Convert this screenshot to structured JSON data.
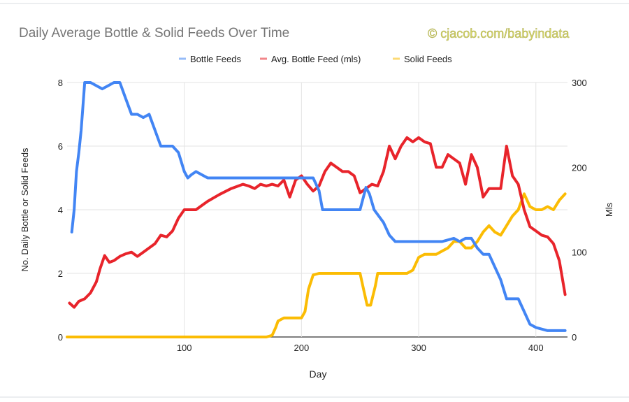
{
  "watermark": "© cjacob.com/babyindata",
  "chart_data": {
    "type": "line",
    "title": "Daily Average Bottle & Solid Feeds Over Time",
    "xlabel": "Day",
    "ylabel_left": "No. Daily Bottle or Solid Feeds",
    "ylabel_right": "Mls",
    "xlim": [
      0,
      427
    ],
    "ylim_left": [
      0,
      8
    ],
    "ylim_right": [
      0,
      300
    ],
    "x_ticks": [
      100,
      200,
      300,
      400
    ],
    "y_ticks_left": [
      0,
      2,
      4,
      6,
      8
    ],
    "y_ticks_right": [
      0,
      100,
      200,
      300
    ],
    "grid": true,
    "legend_position": "top",
    "series": [
      {
        "name": "Bottle Feeds",
        "axis": "left",
        "color": "#4285f4",
        "x": [
          4,
          6,
          8,
          10,
          12,
          15,
          18,
          20,
          30,
          35,
          40,
          45,
          50,
          55,
          60,
          65,
          70,
          75,
          80,
          85,
          90,
          95,
          100,
          103,
          106,
          110,
          115,
          120,
          150,
          180,
          200,
          210,
          215,
          218,
          225,
          250,
          255,
          258,
          262,
          270,
          275,
          280,
          300,
          320,
          330,
          335,
          340,
          345,
          350,
          355,
          360,
          370,
          375,
          380,
          385,
          390,
          395,
          400,
          410,
          420,
          425
        ],
        "y": [
          3.3,
          4.0,
          5.2,
          5.8,
          6.5,
          8.0,
          8.0,
          8.0,
          7.8,
          7.9,
          8.0,
          8.0,
          7.5,
          7.0,
          7.0,
          6.9,
          7.0,
          6.5,
          6.0,
          6.0,
          6.0,
          5.8,
          5.2,
          5.0,
          5.1,
          5.2,
          5.1,
          5.0,
          5.0,
          5.0,
          5.0,
          5.0,
          4.6,
          4.0,
          4.0,
          4.0,
          4.7,
          4.5,
          4.0,
          3.6,
          3.2,
          3.0,
          3.0,
          3.0,
          3.1,
          3.0,
          3.1,
          3.1,
          2.8,
          2.6,
          2.6,
          1.8,
          1.2,
          1.2,
          1.2,
          0.8,
          0.4,
          0.3,
          0.2,
          0.2,
          0.2
        ]
      },
      {
        "name": "Avg. Bottle Feed (mls)",
        "axis": "right",
        "color": "#e8242b",
        "x": [
          2,
          6,
          10,
          15,
          20,
          25,
          28,
          32,
          36,
          40,
          45,
          50,
          55,
          60,
          65,
          70,
          75,
          80,
          85,
          90,
          95,
          100,
          105,
          110,
          115,
          120,
          130,
          140,
          150,
          155,
          160,
          165,
          170,
          175,
          180,
          185,
          190,
          195,
          200,
          205,
          210,
          215,
          220,
          225,
          230,
          235,
          240,
          245,
          250,
          255,
          260,
          265,
          270,
          275,
          280,
          285,
          290,
          295,
          300,
          305,
          310,
          315,
          320,
          325,
          330,
          335,
          340,
          345,
          350,
          355,
          360,
          365,
          370,
          375,
          380,
          385,
          390,
          395,
          400,
          405,
          410,
          415,
          420,
          425
        ],
        "y": [
          40,
          35,
          42,
          45,
          52,
          65,
          80,
          96,
          88,
          90,
          95,
          98,
          100,
          95,
          100,
          105,
          110,
          120,
          118,
          125,
          140,
          150,
          150,
          150,
          155,
          160,
          168,
          175,
          180,
          178,
          175,
          180,
          178,
          180,
          178,
          185,
          165,
          185,
          190,
          180,
          172,
          178,
          195,
          205,
          200,
          195,
          195,
          190,
          170,
          175,
          180,
          178,
          195,
          225,
          210,
          225,
          235,
          230,
          235,
          230,
          228,
          200,
          200,
          215,
          210,
          205,
          180,
          215,
          200,
          165,
          175,
          175,
          175,
          225,
          190,
          180,
          150,
          130,
          125,
          120,
          118,
          110,
          90,
          50
        ]
      },
      {
        "name": "Solid Feeds",
        "axis": "left",
        "color": "#fbbc04",
        "x": [
          0,
          170,
          175,
          178,
          180,
          185,
          190,
          195,
          200,
          203,
          206,
          210,
          215,
          250,
          253,
          256,
          259,
          263,
          265,
          268,
          270,
          280,
          290,
          295,
          300,
          305,
          310,
          315,
          320,
          325,
          330,
          335,
          340,
          345,
          350,
          355,
          360,
          365,
          370,
          375,
          380,
          385,
          390,
          395,
          400,
          405,
          410,
          415,
          420,
          425
        ],
        "y": [
          0,
          0,
          0.05,
          0.3,
          0.5,
          0.6,
          0.6,
          0.6,
          0.6,
          0.8,
          1.5,
          1.95,
          2.0,
          2.0,
          1.5,
          1.0,
          1.0,
          1.6,
          2.0,
          2.0,
          2.0,
          2.0,
          2.0,
          2.1,
          2.5,
          2.6,
          2.6,
          2.6,
          2.7,
          2.8,
          3.0,
          3.0,
          2.8,
          2.8,
          3.0,
          3.3,
          3.5,
          3.3,
          3.2,
          3.5,
          3.8,
          4.0,
          4.5,
          4.1,
          4.0,
          4.0,
          4.1,
          4.0,
          4.3,
          4.5
        ]
      }
    ]
  }
}
